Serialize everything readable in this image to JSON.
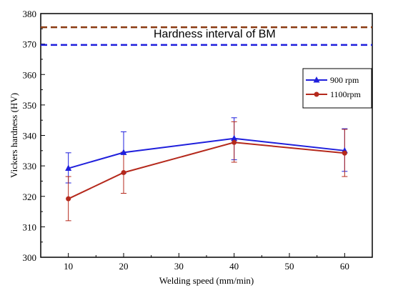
{
  "chart_data": {
    "type": "line",
    "xlabel": "Welding speed (mm/min)",
    "ylabel": "Vickers hardness (HV)",
    "xlim": [
      5,
      65
    ],
    "ylim": [
      300,
      380
    ],
    "x_ticks": [
      10,
      20,
      30,
      40,
      50,
      60
    ],
    "y_ticks": [
      300,
      310,
      320,
      330,
      340,
      350,
      360,
      370,
      380
    ],
    "x": [
      10,
      20,
      40,
      60
    ],
    "series": [
      {
        "name": "900 rpm",
        "color": "#1f1fdc",
        "marker": "triangle",
        "values": [
          329.2,
          334.4,
          339.0,
          335.0
        ],
        "err_low": [
          324.4,
          327.6,
          332.0,
          328.2
        ],
        "err_high": [
          334.3,
          341.2,
          345.8,
          342.2
        ]
      },
      {
        "name": "1100rpm",
        "color": "#b5291c",
        "marker": "circle",
        "values": [
          319.2,
          327.8,
          337.7,
          334.2
        ],
        "err_low": [
          312.0,
          321.0,
          331.2,
          326.5
        ],
        "err_high": [
          326.5,
          334.5,
          344.5,
          342.0
        ]
      }
    ],
    "reference_lines": [
      {
        "value": 375.5,
        "color": "#8b3a10",
        "style": "dashed"
      },
      {
        "value": 369.7,
        "color": "#1f1fdc",
        "style": "dashed"
      }
    ],
    "annotation": "Hardness   interval of BM",
    "legend_position": "right",
    "grid": false
  }
}
